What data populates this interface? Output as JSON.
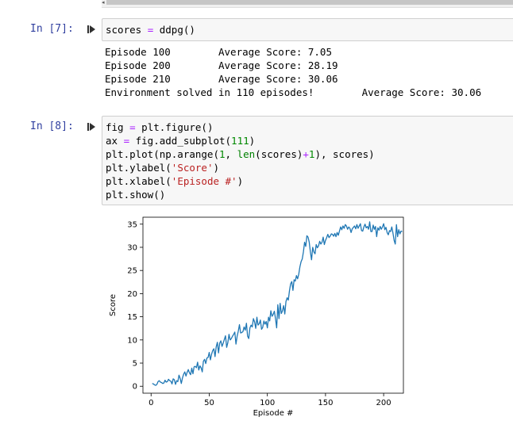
{
  "cells": [
    {
      "prompt": "In [7]:",
      "code": [
        [
          [
            "scores ",
            ""
          ],
          [
            "=",
            "op"
          ],
          [
            " ddpg()",
            ""
          ]
        ]
      ],
      "output_lines": [
        "Episode 100\tAverage Score: 7.05",
        "Episode 200\tAverage Score: 28.19",
        "Episode 210\tAverage Score: 30.06",
        "Environment solved in 110 episodes!\tAverage Score: 30.06"
      ]
    },
    {
      "prompt": "In [8]:",
      "code": [
        [
          [
            "fig ",
            ""
          ],
          [
            "=",
            "op"
          ],
          [
            " plt.figure()",
            ""
          ]
        ],
        [
          [
            "ax ",
            ""
          ],
          [
            "=",
            "op"
          ],
          [
            " fig.add_subplot(",
            ""
          ],
          [
            "111",
            "num"
          ],
          [
            ")",
            ""
          ]
        ],
        [
          [
            "plt.plot(np.arange(",
            ""
          ],
          [
            "1",
            "num"
          ],
          [
            ", ",
            ""
          ],
          [
            "len",
            "fn"
          ],
          [
            "(scores)",
            ""
          ],
          [
            "+",
            "op"
          ],
          [
            "1",
            "num"
          ],
          [
            "), scores)",
            ""
          ]
        ],
        [
          [
            "plt.ylabel(",
            ""
          ],
          [
            "'Score'",
            "str"
          ],
          [
            ")",
            ""
          ]
        ],
        [
          [
            "plt.xlabel(",
            ""
          ],
          [
            "'Episode #'",
            "str"
          ],
          [
            ")",
            ""
          ]
        ],
        [
          [
            "plt.show()",
            ""
          ]
        ]
      ]
    }
  ],
  "chart_data": {
    "type": "line",
    "xlabel": "Episode #",
    "ylabel": "Score",
    "xlim": [
      -7,
      217
    ],
    "ylim": [
      -1.5,
      36.5
    ],
    "xticks": [
      0,
      50,
      100,
      150,
      200
    ],
    "yticks": [
      0,
      5,
      10,
      15,
      20,
      25,
      30,
      35
    ],
    "line_color": "#1f77b4",
    "series": [
      {
        "x_start": 1,
        "values": [
          0.6,
          0.5,
          0.3,
          0.2,
          0.4,
          1.0,
          1.2,
          0.9,
          0.8,
          0.6,
          0.7,
          1.3,
          0.9,
          1.0,
          1.5,
          1.2,
          1.1,
          0.5,
          1.6,
          1.4,
          0.4,
          1.2,
          1.0,
          2.4,
          1.7,
          0.6,
          1.8,
          2.6,
          3.1,
          2.2,
          3.0,
          3.6,
          2.9,
          2.5,
          3.9,
          2.7,
          4.2,
          4.3,
          4.0,
          5.2,
          3.5,
          4.4,
          4.0,
          3.1,
          5.4,
          5.8,
          4.9,
          6.1,
          6.2,
          7.3,
          5.7,
          6.9,
          7.7,
          8.1,
          6.4,
          8.5,
          9.5,
          7.2,
          9.3,
          9.8,
          8.6,
          9.3,
          10.1,
          10.9,
          8.4,
          9.4,
          11.2,
          10.0,
          10.3,
          10.8,
          11.2,
          11.7,
          9.1,
          10.8,
          11.9,
          13.3,
          11.5,
          11.6,
          11.8,
          12.8,
          12.1,
          13.6,
          10.8,
          10.3,
          12.6,
          13.2,
          12.8,
          14.6,
          13.9,
          12.5,
          14.9,
          13.2,
          13.5,
          14.3,
          12.3,
          12.7,
          14.1,
          13.4,
          14.0,
          12.6,
          14.9,
          14.1,
          16.3,
          15.1,
          15.5,
          16.2,
          14.6,
          12.6,
          17.6,
          14.6,
          17.9,
          15.7,
          16.3,
          17.4,
          15.6,
          18.3,
          19.1,
          18.6,
          20.6,
          22.1,
          22.6,
          20.7,
          23.0,
          22.7,
          23.9,
          23.2,
          24.2,
          25.8,
          26.9,
          27.5,
          29.0,
          31.1,
          30.2,
          32.5,
          32.2,
          31.1,
          29.0,
          27.3,
          30.0,
          29.0,
          28.6,
          30.6,
          29.9,
          30.3,
          31.3,
          30.7,
          31.1,
          32.2,
          30.6,
          31.5,
          32.1,
          32.8,
          32.1,
          32.4,
          32.9,
          32.8,
          32.4,
          33.0,
          32.3,
          33.2,
          32.6,
          33.5,
          34.4,
          33.8,
          34.6,
          34.1,
          34.9,
          34.6,
          33.9,
          34.4,
          34.1,
          33.2,
          34.0,
          34.3,
          34.6,
          34.0,
          34.9,
          34.1,
          34.6,
          35.1,
          33.6,
          33.5,
          34.4,
          35.0,
          34.2,
          34.5,
          33.9,
          35.5,
          33.4,
          33.4,
          34.8,
          33.9,
          34.5,
          32.3,
          34.2,
          33.7,
          34.5,
          33.9,
          34.4,
          35.1,
          33.8,
          34.3,
          33.2,
          32.7,
          33.6,
          33.4,
          34.4,
          33.1,
          31.5,
          30.7,
          34.9,
          32.3,
          33.8,
          32.9,
          33.5,
          33.4
        ]
      }
    ]
  }
}
